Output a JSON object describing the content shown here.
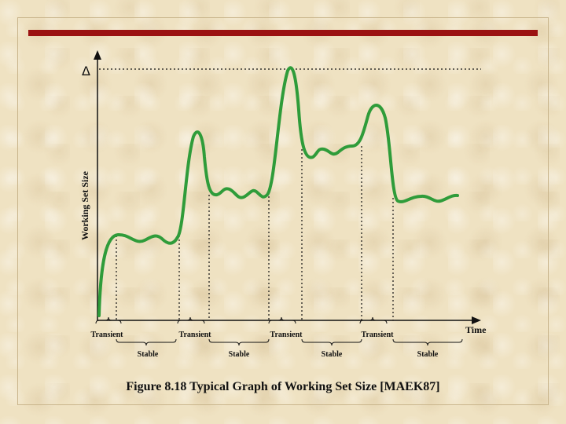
{
  "delta_symbol": "Δ",
  "y_axis_label": "Working Set Size",
  "x_axis_label": "Time",
  "segments": {
    "transient": [
      "Transient",
      "Transient",
      "Transient",
      "Transient"
    ],
    "stable": [
      "Stable",
      "Stable",
      "Stable",
      "Stable"
    ]
  },
  "caption": "Figure 8.18  Typical Graph of Working Set Size [MAEK87]",
  "colors": {
    "title_bar": "#9b1212",
    "curve": "#2f9c3a",
    "background": "#efe2c2"
  }
}
